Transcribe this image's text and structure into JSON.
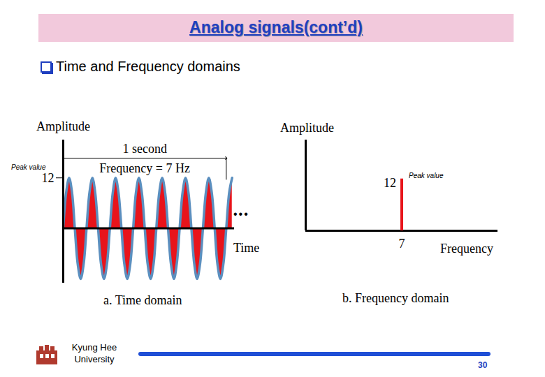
{
  "slide": {
    "title": "Analog signals(cont’d)",
    "bullet": "Time and Frequency domains",
    "footer": [
      "Kyung Hee",
      "University"
    ],
    "page": "30"
  },
  "chart_data": [
    {
      "type": "area",
      "caption": "a. Time domain",
      "x_label": "Time",
      "y_label": "Amplitude",
      "x": [
        0,
        0.018,
        0.036,
        0.054,
        0.071,
        0.089,
        0.107,
        0.125,
        0.143,
        0.161,
        0.179,
        0.196,
        0.214,
        0.232,
        0.25,
        0.268,
        0.286,
        0.304,
        0.321,
        0.339,
        0.357,
        0.375,
        0.393,
        0.411,
        0.429,
        0.446,
        0.464,
        0.482,
        0.5,
        0.518,
        0.536,
        0.554,
        0.571,
        0.589,
        0.607,
        0.625,
        0.643,
        0.661,
        0.679,
        0.696,
        0.714,
        0.732,
        0.75,
        0.768,
        0.786,
        0.804,
        0.821,
        0.839,
        0.857,
        0.875,
        0.893,
        0.911,
        0.929,
        0.946,
        0.964,
        0.982,
        1.0,
        1.018,
        1.036
      ],
      "values": [
        0,
        8.5,
        12,
        8.5,
        0,
        -8.5,
        -12,
        -8.5,
        0,
        8.5,
        12,
        8.5,
        0,
        -8.5,
        -12,
        -8.5,
        0,
        8.5,
        12,
        8.5,
        0,
        -8.5,
        -12,
        -8.5,
        0,
        8.5,
        12,
        8.5,
        0,
        -8.5,
        -12,
        -8.5,
        0,
        8.5,
        12,
        8.5,
        0,
        -8.5,
        -12,
        -8.5,
        0,
        8.5,
        12,
        8.5,
        0,
        -8.5,
        -12,
        -8.5,
        0,
        8.5,
        12,
        8.5,
        0,
        -8.5,
        -12,
        -8.5,
        0,
        8.5,
        12
      ],
      "color": "#e8141b",
      "xlim": [
        0,
        1.05
      ],
      "ylim": [
        -13,
        21
      ],
      "yticks": [
        12
      ],
      "tick_labels": "y",
      "peak_label": "Peak value",
      "span_label": "1 second",
      "span": [
        0,
        1
      ],
      "frequency_label": "Frequency = 7 Hz",
      "continuation": "•••"
    },
    {
      "type": "bar",
      "caption": "b. Frequency domain",
      "x_label": "Frequency",
      "y_label": "Amplitude",
      "x": [
        7
      ],
      "values": [
        12
      ],
      "color": "#e8141b",
      "xlim": [
        0,
        14
      ],
      "ylim": [
        0,
        21
      ],
      "xticks": [
        7
      ],
      "tick_labels": "x",
      "data_labels": true,
      "peak_label": "Peak value"
    }
  ]
}
